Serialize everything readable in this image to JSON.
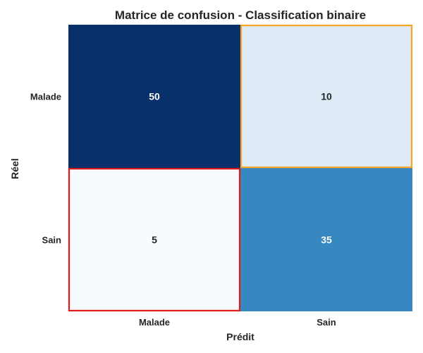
{
  "chart_data": {
    "type": "heatmap",
    "title": "Matrice de confusion - Classification binaire",
    "xlabel": "Prédit",
    "ylabel": "Réel",
    "x_categories": [
      "Malade",
      "Sain"
    ],
    "y_categories": [
      "Malade",
      "Sain"
    ],
    "values": [
      [
        50,
        10
      ],
      [
        5,
        35
      ]
    ],
    "colormap": "Blues",
    "colorbar": false,
    "grid": false,
    "cell_colors": [
      [
        "#08306b",
        "#dfeaf7"
      ],
      [
        "#f7fbff",
        "#3787c0"
      ]
    ],
    "highlighted_cells": [
      {
        "row": 0,
        "col": 1,
        "color": "#f5a623"
      },
      {
        "row": 1,
        "col": 0,
        "color": "#e31a1c"
      }
    ],
    "dark_text_color": "#262626",
    "light_text_color": "#ffffff"
  }
}
